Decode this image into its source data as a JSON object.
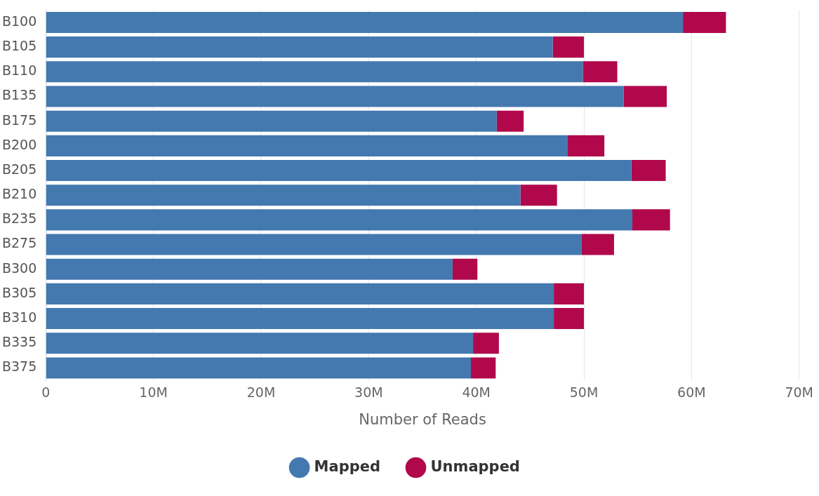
{
  "chart_data": {
    "type": "bar",
    "orientation": "horizontal",
    "stacked": true,
    "xlabel": "Number of Reads",
    "categories": [
      "B100",
      "B105",
      "B110",
      "B135",
      "B175",
      "B200",
      "B205",
      "B210",
      "B235",
      "B275",
      "B300",
      "B305",
      "B310",
      "B335",
      "B375"
    ],
    "series": [
      {
        "name": "Mapped",
        "color": "#4479b0",
        "values": [
          59.2,
          47.1,
          49.9,
          53.7,
          41.9,
          48.5,
          54.4,
          44.1,
          54.5,
          49.8,
          37.8,
          47.2,
          47.2,
          39.7,
          39.5
        ]
      },
      {
        "name": "Unmapped",
        "color": "#b1084c",
        "values": [
          4.0,
          2.9,
          3.2,
          4.0,
          2.5,
          3.4,
          3.2,
          3.4,
          3.5,
          3.0,
          2.3,
          2.8,
          2.8,
          2.4,
          2.3
        ]
      }
    ],
    "xlim": [
      0,
      70
    ],
    "xticks": [
      0,
      {
        "value": 10,
        "label": "10M"
      },
      {
        "value": 20,
        "label": "20M"
      },
      {
        "value": 30,
        "label": "30M"
      },
      {
        "value": 40,
        "label": "40M"
      },
      {
        "value": 50,
        "label": "50M"
      },
      {
        "value": 60,
        "label": "60M"
      },
      {
        "value": 70,
        "label": "70M"
      }
    ],
    "grid": "x",
    "legend": "bottom",
    "marker": "circle"
  }
}
